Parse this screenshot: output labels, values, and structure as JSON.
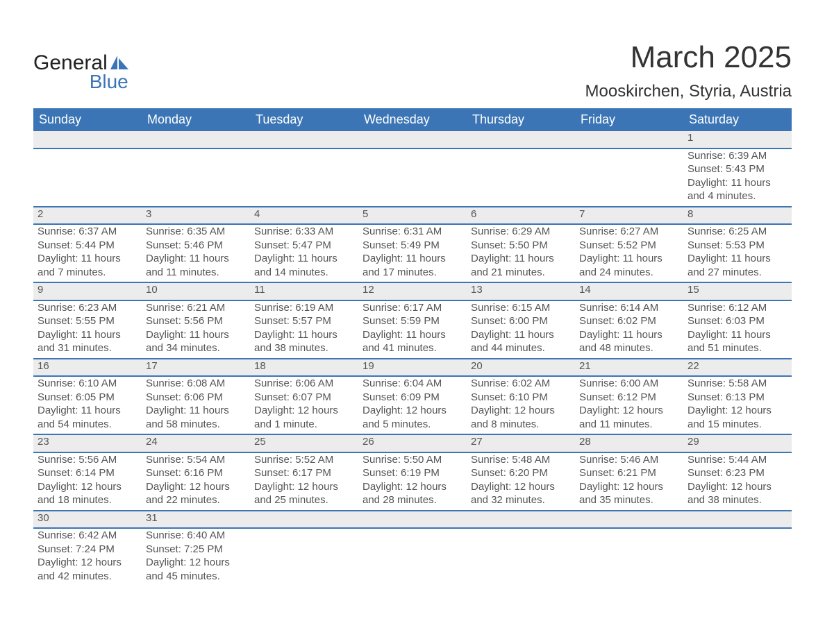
{
  "brand": {
    "name_a": "General",
    "name_b": "Blue",
    "logo_color": "#3b75b5"
  },
  "title": "March 2025",
  "location": "Mooskirchen, Styria, Austria",
  "colors": {
    "header_bg": "#3b75b5",
    "header_fg": "#ffffff",
    "daynum_bg": "#ececec",
    "row_border": "#3b75b5",
    "text": "#555555",
    "page_bg": "#ffffff"
  },
  "typography": {
    "title_fontsize": 44,
    "location_fontsize": 24,
    "weekday_fontsize": 18,
    "daynum_fontsize": 17,
    "cell_fontsize": 15
  },
  "weekdays": [
    "Sunday",
    "Monday",
    "Tuesday",
    "Wednesday",
    "Thursday",
    "Friday",
    "Saturday"
  ],
  "weeks": [
    [
      null,
      null,
      null,
      null,
      null,
      null,
      {
        "n": "1",
        "sunrise": "Sunrise: 6:39 AM",
        "sunset": "Sunset: 5:43 PM",
        "day1": "Daylight: 11 hours",
        "day2": "and 4 minutes."
      }
    ],
    [
      {
        "n": "2",
        "sunrise": "Sunrise: 6:37 AM",
        "sunset": "Sunset: 5:44 PM",
        "day1": "Daylight: 11 hours",
        "day2": "and 7 minutes."
      },
      {
        "n": "3",
        "sunrise": "Sunrise: 6:35 AM",
        "sunset": "Sunset: 5:46 PM",
        "day1": "Daylight: 11 hours",
        "day2": "and 11 minutes."
      },
      {
        "n": "4",
        "sunrise": "Sunrise: 6:33 AM",
        "sunset": "Sunset: 5:47 PM",
        "day1": "Daylight: 11 hours",
        "day2": "and 14 minutes."
      },
      {
        "n": "5",
        "sunrise": "Sunrise: 6:31 AM",
        "sunset": "Sunset: 5:49 PM",
        "day1": "Daylight: 11 hours",
        "day2": "and 17 minutes."
      },
      {
        "n": "6",
        "sunrise": "Sunrise: 6:29 AM",
        "sunset": "Sunset: 5:50 PM",
        "day1": "Daylight: 11 hours",
        "day2": "and 21 minutes."
      },
      {
        "n": "7",
        "sunrise": "Sunrise: 6:27 AM",
        "sunset": "Sunset: 5:52 PM",
        "day1": "Daylight: 11 hours",
        "day2": "and 24 minutes."
      },
      {
        "n": "8",
        "sunrise": "Sunrise: 6:25 AM",
        "sunset": "Sunset: 5:53 PM",
        "day1": "Daylight: 11 hours",
        "day2": "and 27 minutes."
      }
    ],
    [
      {
        "n": "9",
        "sunrise": "Sunrise: 6:23 AM",
        "sunset": "Sunset: 5:55 PM",
        "day1": "Daylight: 11 hours",
        "day2": "and 31 minutes."
      },
      {
        "n": "10",
        "sunrise": "Sunrise: 6:21 AM",
        "sunset": "Sunset: 5:56 PM",
        "day1": "Daylight: 11 hours",
        "day2": "and 34 minutes."
      },
      {
        "n": "11",
        "sunrise": "Sunrise: 6:19 AM",
        "sunset": "Sunset: 5:57 PM",
        "day1": "Daylight: 11 hours",
        "day2": "and 38 minutes."
      },
      {
        "n": "12",
        "sunrise": "Sunrise: 6:17 AM",
        "sunset": "Sunset: 5:59 PM",
        "day1": "Daylight: 11 hours",
        "day2": "and 41 minutes."
      },
      {
        "n": "13",
        "sunrise": "Sunrise: 6:15 AM",
        "sunset": "Sunset: 6:00 PM",
        "day1": "Daylight: 11 hours",
        "day2": "and 44 minutes."
      },
      {
        "n": "14",
        "sunrise": "Sunrise: 6:14 AM",
        "sunset": "Sunset: 6:02 PM",
        "day1": "Daylight: 11 hours",
        "day2": "and 48 minutes."
      },
      {
        "n": "15",
        "sunrise": "Sunrise: 6:12 AM",
        "sunset": "Sunset: 6:03 PM",
        "day1": "Daylight: 11 hours",
        "day2": "and 51 minutes."
      }
    ],
    [
      {
        "n": "16",
        "sunrise": "Sunrise: 6:10 AM",
        "sunset": "Sunset: 6:05 PM",
        "day1": "Daylight: 11 hours",
        "day2": "and 54 minutes."
      },
      {
        "n": "17",
        "sunrise": "Sunrise: 6:08 AM",
        "sunset": "Sunset: 6:06 PM",
        "day1": "Daylight: 11 hours",
        "day2": "and 58 minutes."
      },
      {
        "n": "18",
        "sunrise": "Sunrise: 6:06 AM",
        "sunset": "Sunset: 6:07 PM",
        "day1": "Daylight: 12 hours",
        "day2": "and 1 minute."
      },
      {
        "n": "19",
        "sunrise": "Sunrise: 6:04 AM",
        "sunset": "Sunset: 6:09 PM",
        "day1": "Daylight: 12 hours",
        "day2": "and 5 minutes."
      },
      {
        "n": "20",
        "sunrise": "Sunrise: 6:02 AM",
        "sunset": "Sunset: 6:10 PM",
        "day1": "Daylight: 12 hours",
        "day2": "and 8 minutes."
      },
      {
        "n": "21",
        "sunrise": "Sunrise: 6:00 AM",
        "sunset": "Sunset: 6:12 PM",
        "day1": "Daylight: 12 hours",
        "day2": "and 11 minutes."
      },
      {
        "n": "22",
        "sunrise": "Sunrise: 5:58 AM",
        "sunset": "Sunset: 6:13 PM",
        "day1": "Daylight: 12 hours",
        "day2": "and 15 minutes."
      }
    ],
    [
      {
        "n": "23",
        "sunrise": "Sunrise: 5:56 AM",
        "sunset": "Sunset: 6:14 PM",
        "day1": "Daylight: 12 hours",
        "day2": "and 18 minutes."
      },
      {
        "n": "24",
        "sunrise": "Sunrise: 5:54 AM",
        "sunset": "Sunset: 6:16 PM",
        "day1": "Daylight: 12 hours",
        "day2": "and 22 minutes."
      },
      {
        "n": "25",
        "sunrise": "Sunrise: 5:52 AM",
        "sunset": "Sunset: 6:17 PM",
        "day1": "Daylight: 12 hours",
        "day2": "and 25 minutes."
      },
      {
        "n": "26",
        "sunrise": "Sunrise: 5:50 AM",
        "sunset": "Sunset: 6:19 PM",
        "day1": "Daylight: 12 hours",
        "day2": "and 28 minutes."
      },
      {
        "n": "27",
        "sunrise": "Sunrise: 5:48 AM",
        "sunset": "Sunset: 6:20 PM",
        "day1": "Daylight: 12 hours",
        "day2": "and 32 minutes."
      },
      {
        "n": "28",
        "sunrise": "Sunrise: 5:46 AM",
        "sunset": "Sunset: 6:21 PM",
        "day1": "Daylight: 12 hours",
        "day2": "and 35 minutes."
      },
      {
        "n": "29",
        "sunrise": "Sunrise: 5:44 AM",
        "sunset": "Sunset: 6:23 PM",
        "day1": "Daylight: 12 hours",
        "day2": "and 38 minutes."
      }
    ],
    [
      {
        "n": "30",
        "sunrise": "Sunrise: 6:42 AM",
        "sunset": "Sunset: 7:24 PM",
        "day1": "Daylight: 12 hours",
        "day2": "and 42 minutes."
      },
      {
        "n": "31",
        "sunrise": "Sunrise: 6:40 AM",
        "sunset": "Sunset: 7:25 PM",
        "day1": "Daylight: 12 hours",
        "day2": "and 45 minutes."
      },
      null,
      null,
      null,
      null,
      null
    ]
  ]
}
